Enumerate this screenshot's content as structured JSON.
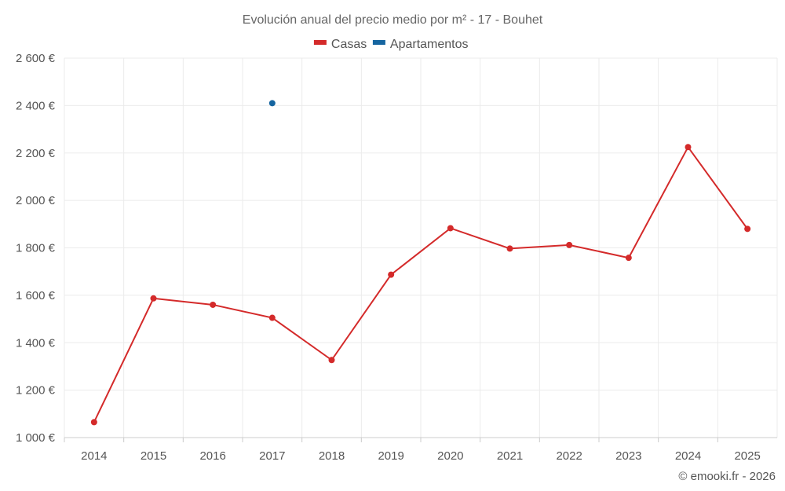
{
  "chart_data": {
    "type": "line",
    "title": "Evolución anual del precio medio por m² - 17 - Bouhet",
    "categories": [
      "2014",
      "2015",
      "2016",
      "2017",
      "2018",
      "2019",
      "2020",
      "2021",
      "2022",
      "2023",
      "2024",
      "2025"
    ],
    "series": [
      {
        "name": "Casas",
        "color": "#d42a2a",
        "values": [
          1065,
          1587,
          1560,
          1505,
          1327,
          1687,
          1883,
          1797,
          1812,
          1758,
          2225,
          1880
        ]
      },
      {
        "name": "Apartamentos",
        "color": "#1565a0",
        "values": [
          null,
          null,
          null,
          2410,
          null,
          null,
          null,
          null,
          null,
          null,
          null,
          null
        ]
      }
    ],
    "ylim": [
      1000,
      2600
    ],
    "yticks": [
      1000,
      1200,
      1400,
      1600,
      1800,
      2000,
      2200,
      2400,
      2600
    ],
    "y_tick_labels": [
      "1 000 €",
      "1 200 €",
      "1 400 €",
      "1 600 €",
      "1 800 €",
      "2 000 €",
      "2 200 €",
      "2 400 €",
      "2 600 €"
    ],
    "grid": true,
    "legend_position": "top-center"
  },
  "footer": {
    "copyright": "© emooki.fr - 2026"
  }
}
